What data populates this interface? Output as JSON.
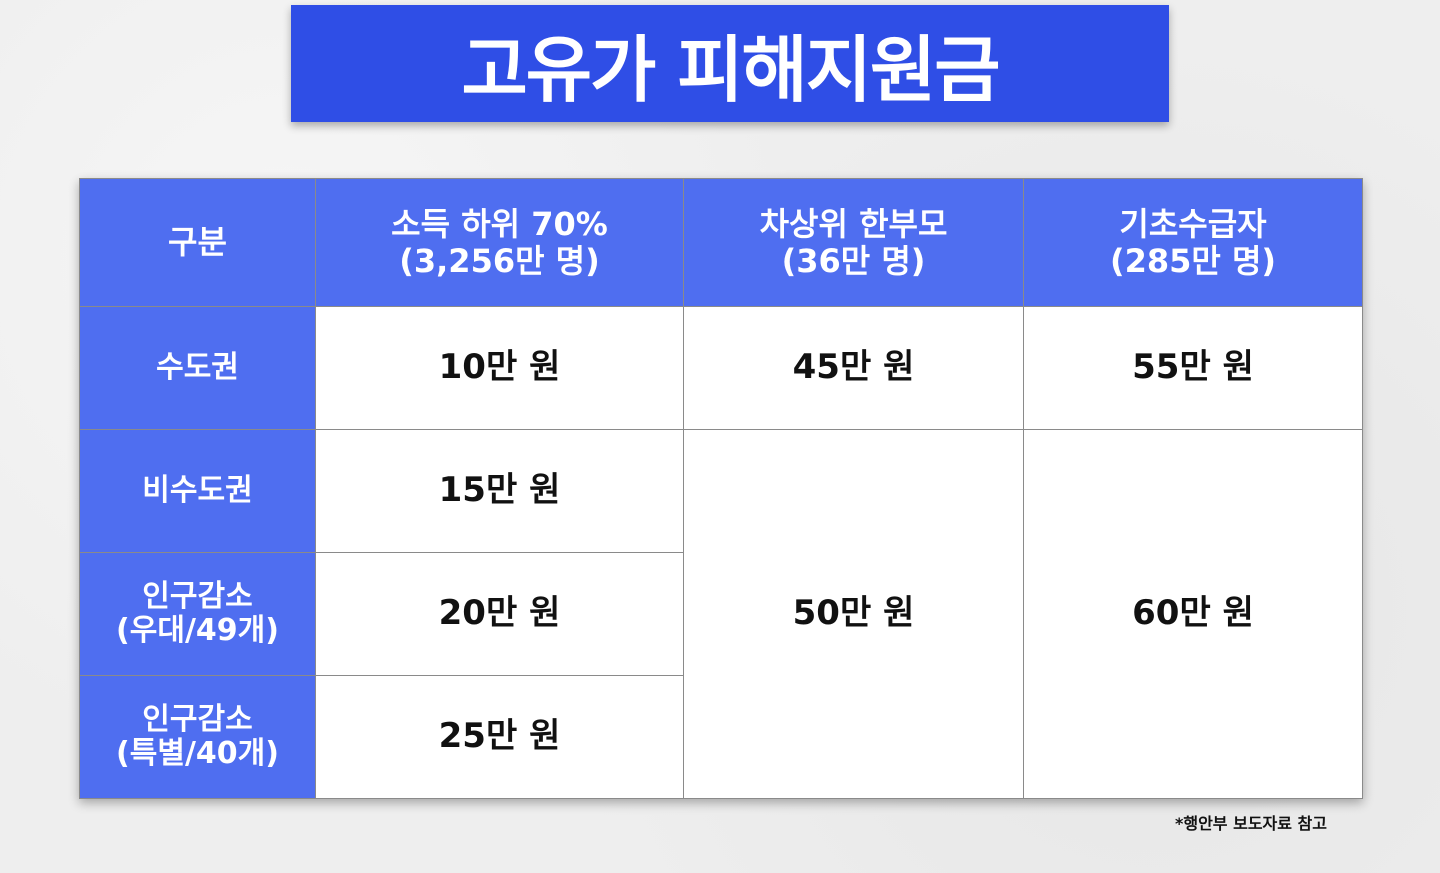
{
  "title": "고유가 피해지원금",
  "table": {
    "headers": [
      "구분",
      "소득 하위 70%\n(3,256만 명)",
      "차상위 한부모\n(36만 명)",
      "기초수급자\n(285만 명)"
    ],
    "header_lines": [
      [
        "구분"
      ],
      [
        "소득 하위 70%",
        "(3,256만 명)"
      ],
      [
        "차상위 한부모",
        "(36만 명)"
      ],
      [
        "기초수급자",
        "(285만 명)"
      ]
    ],
    "rows": [
      {
        "label": [
          "수도권"
        ],
        "income_bottom70": "10만 원",
        "single_parent": "45만 원",
        "basic_recipient": "55만 원"
      },
      {
        "label": [
          "비수도권"
        ],
        "income_bottom70": "15만 원",
        "single_parent": "50만 원",
        "basic_recipient": "60만 원"
      },
      {
        "label": [
          "인구감소",
          "(우대/49개)"
        ],
        "income_bottom70": "20만 원"
      },
      {
        "label": [
          "인구감소",
          "(특별/40개)"
        ],
        "income_bottom70": "25만 원"
      }
    ]
  },
  "footnote": "*행안부 보도자료 참고",
  "colors": {
    "banner": "#2f4ee6",
    "header": "#4f6ef0"
  }
}
